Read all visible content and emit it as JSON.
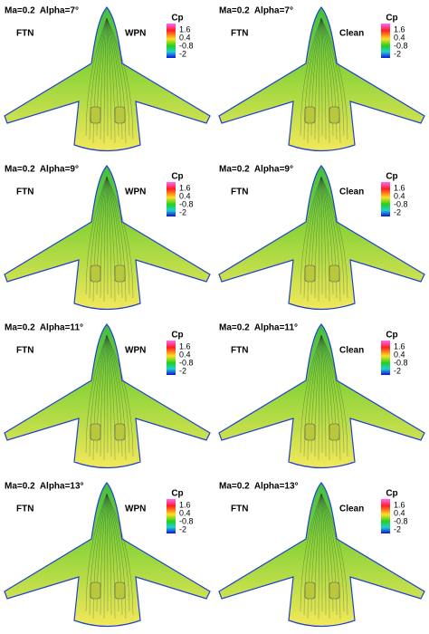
{
  "panels": [
    {
      "condition": "Ma=0.2  Alpha=7°",
      "model": "FTN",
      "config": "WPN",
      "legend": {
        "title": "Cp",
        "ticks": [
          "1.6",
          "0.4",
          "-0.8",
          "-2"
        ]
      }
    },
    {
      "condition": "Ma=0.2  Alpha=7°",
      "model": "FTN",
      "config": "Clean",
      "legend": {
        "title": "Cp",
        "ticks": [
          "1.6",
          "0.4",
          "-0.8",
          "-2"
        ]
      }
    },
    {
      "condition": "Ma=0.2  Alpha=9°",
      "model": "FTN",
      "config": "WPN",
      "legend": {
        "title": "Cp",
        "ticks": [
          "1.6",
          "0.4",
          "-0.8",
          "-2"
        ]
      }
    },
    {
      "condition": "Ma=0.2  Alpha=9°",
      "model": "FTN",
      "config": "Clean",
      "legend": {
        "title": "Cp",
        "ticks": [
          "1.6",
          "0.4",
          "-0.8",
          "-2"
        ]
      }
    },
    {
      "condition": "Ma=0.2  Alpha=11°",
      "model": "FTN",
      "config": "WPN",
      "legend": {
        "title": "Cp",
        "ticks": [
          "1.6",
          "0.4",
          "-0.8",
          "-2"
        ]
      }
    },
    {
      "condition": "Ma=0.2  Alpha=11°",
      "model": "FTN",
      "config": "Clean",
      "legend": {
        "title": "Cp",
        "ticks": [
          "1.6",
          "0.4",
          "-0.8",
          "-2"
        ]
      }
    },
    {
      "condition": "Ma=0.2  Alpha=13°",
      "model": "FTN",
      "config": "WPN",
      "legend": {
        "title": "Cp",
        "ticks": [
          "1.6",
          "0.4",
          "-0.8",
          "-2"
        ]
      }
    },
    {
      "condition": "Ma=0.2  Alpha=13°",
      "model": "FTN",
      "config": "Clean",
      "legend": {
        "title": "Cp",
        "ticks": [
          "1.6",
          "0.4",
          "-0.8",
          "-2"
        ]
      }
    }
  ]
}
